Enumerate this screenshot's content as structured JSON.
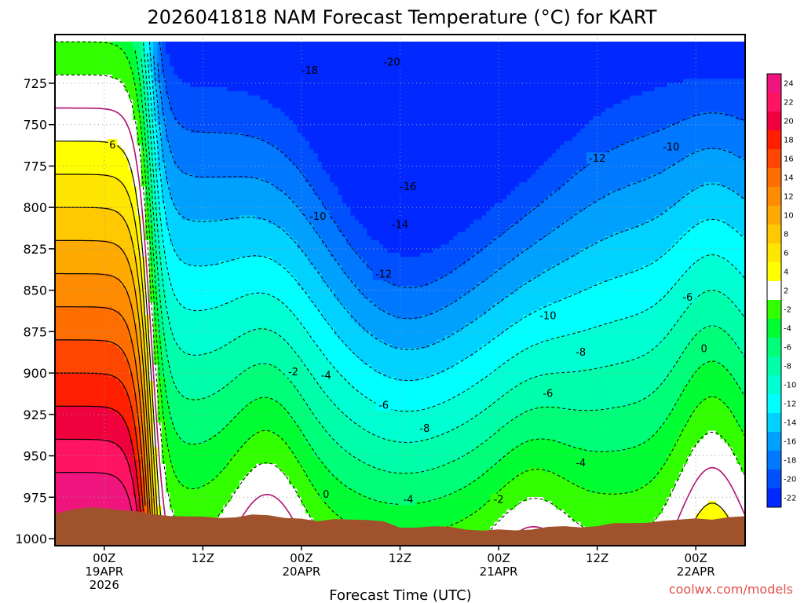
{
  "chart_data": {
    "type": "heatmap",
    "title": "2026041818 NAM Forecast Temperature (°C) for KART",
    "xlabel": "Forecast Time (UTC)",
    "ylabel": "",
    "credit": "coolwx.com/models",
    "y_ticks": [
      "725",
      "750",
      "775",
      "800",
      "825",
      "850",
      "875",
      "900",
      "925",
      "950",
      "975",
      "1000"
    ],
    "ylim": [
      1000,
      700
    ],
    "x_ticks": [
      {
        "hour": 6,
        "lines": [
          "00Z",
          "19APR",
          "2026"
        ]
      },
      {
        "hour": 18,
        "lines": [
          "12Z"
        ]
      },
      {
        "hour": 30,
        "lines": [
          "00Z",
          "20APR"
        ]
      },
      {
        "hour": 42,
        "lines": [
          "12Z"
        ]
      },
      {
        "hour": 54,
        "lines": [
          "00Z",
          "21APR"
        ]
      },
      {
        "hour": 66,
        "lines": [
          "12Z"
        ]
      },
      {
        "hour": 78,
        "lines": [
          "00Z",
          "22APR"
        ]
      }
    ],
    "xlim": [
      0,
      84
    ],
    "colorbar": {
      "levels": [
        "24",
        "22",
        "20",
        "18",
        "16",
        "14",
        "12",
        "10",
        "8",
        "6",
        "4",
        "2",
        "-2",
        "-4",
        "-6",
        "-8",
        "-10",
        "-12",
        "-14",
        "-16",
        "-18",
        "-20",
        "-22"
      ],
      "colors": [
        "#f0147f",
        "#ff1464",
        "#f0003c",
        "#ff1e00",
        "#ff4600",
        "#ff6e00",
        "#ff8c00",
        "#ffaa00",
        "#ffc800",
        "#ffe600",
        "#ffff00",
        "#ffffff",
        "#32ff00",
        "#00ff32",
        "#00ff78",
        "#00ffaa",
        "#00ffd2",
        "#00ffff",
        "#00d2ff",
        "#00a0ff",
        "#0078ff",
        "#0050ff",
        "#0028ff"
      ]
    },
    "contour_labels": [
      {
        "text": "6",
        "hour": 7,
        "p": 763
      },
      {
        "text": "-18",
        "hour": 31,
        "p": 718
      },
      {
        "text": "-20",
        "hour": 41,
        "p": 713
      },
      {
        "text": "-16",
        "hour": 43,
        "p": 788
      },
      {
        "text": "-14",
        "hour": 42,
        "p": 811
      },
      {
        "text": "-10",
        "hour": 32,
        "p": 806
      },
      {
        "text": "-12",
        "hour": 40,
        "p": 841
      },
      {
        "text": "-12",
        "hour": 66,
        "p": 771
      },
      {
        "text": "-10",
        "hour": 75,
        "p": 764
      },
      {
        "text": "-10",
        "hour": 60,
        "p": 866
      },
      {
        "text": "-6",
        "hour": 77,
        "p": 855
      },
      {
        "text": "-8",
        "hour": 64,
        "p": 888
      },
      {
        "text": "-6",
        "hour": 60,
        "p": 913
      },
      {
        "text": "-2",
        "hour": 29,
        "p": 900
      },
      {
        "text": "-4",
        "hour": 33,
        "p": 902
      },
      {
        "text": "-6",
        "hour": 40,
        "p": 920
      },
      {
        "text": "-8",
        "hour": 45,
        "p": 934
      },
      {
        "text": "-4",
        "hour": 64,
        "p": 955
      },
      {
        "text": "-2",
        "hour": 54,
        "p": 977
      },
      {
        "text": "-4",
        "hour": 43,
        "p": 977
      },
      {
        "text": "0",
        "hour": 33,
        "p": 974
      },
      {
        "text": "0",
        "hour": 79,
        "p": 886
      }
    ],
    "surface_pressure": [
      [
        0,
        985
      ],
      [
        2,
        983
      ],
      [
        4,
        981
      ],
      [
        6,
        981
      ],
      [
        8,
        983
      ],
      [
        10,
        984
      ],
      [
        12,
        985
      ],
      [
        14,
        986
      ],
      [
        16,
        987
      ],
      [
        18,
        987
      ],
      [
        20,
        987
      ],
      [
        22,
        987
      ],
      [
        24,
        986
      ],
      [
        26,
        986
      ],
      [
        28,
        987
      ],
      [
        30,
        988
      ],
      [
        32,
        990
      ],
      [
        34,
        988
      ],
      [
        36,
        988
      ],
      [
        38,
        989
      ],
      [
        40,
        990
      ],
      [
        42,
        993
      ],
      [
        44,
        993
      ],
      [
        46,
        993
      ],
      [
        48,
        993
      ],
      [
        50,
        994
      ],
      [
        52,
        995
      ],
      [
        54,
        995
      ],
      [
        56,
        995
      ],
      [
        58,
        994
      ],
      [
        60,
        993
      ],
      [
        62,
        993
      ],
      [
        64,
        993
      ],
      [
        66,
        992
      ],
      [
        68,
        991
      ],
      [
        70,
        991
      ],
      [
        72,
        990
      ],
      [
        74,
        989
      ],
      [
        76,
        989
      ],
      [
        78,
        988
      ],
      [
        80,
        988
      ],
      [
        82,
        987
      ],
      [
        84,
        987
      ]
    ]
  }
}
